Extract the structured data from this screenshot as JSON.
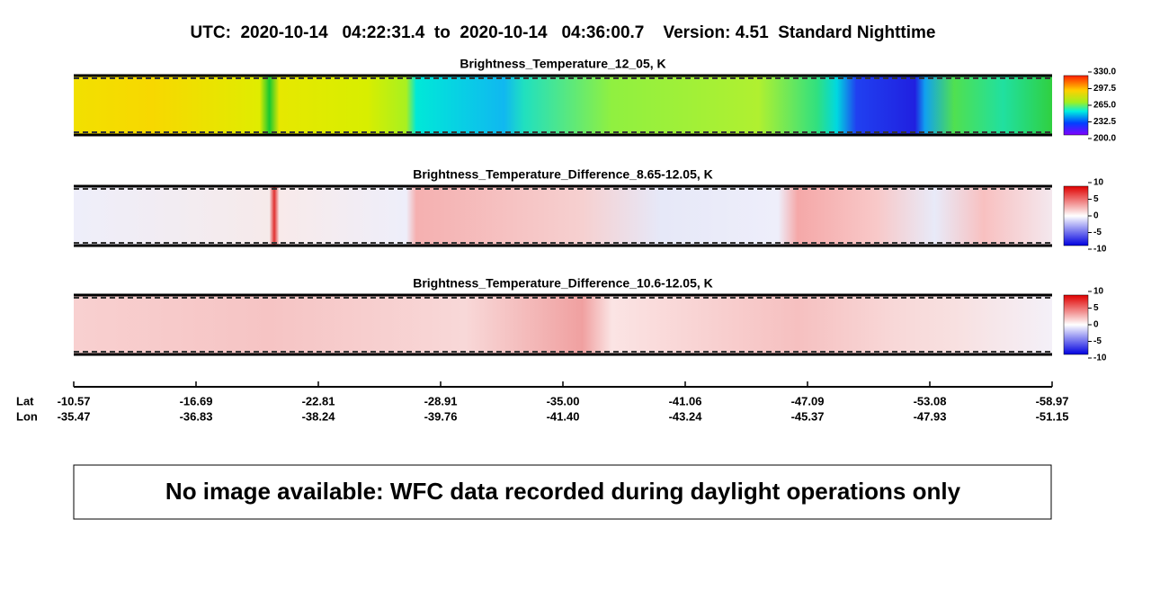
{
  "title": "UTC:  2020-10-14   04:22:31.4  to  2020-10-14   04:36:00.7    Version: 4.51  Standard Nighttime",
  "panels": [
    {
      "title": "Brightness_Temperature_12_05, K",
      "colorbar_labels": [
        "330.0",
        "297.5",
        "265.0",
        "232.5",
        "200.0"
      ]
    },
    {
      "title": "Brightness_Temperature_Difference_8.65-12.05, K",
      "colorbar_labels": [
        "10",
        "5",
        "0",
        "-5",
        "-10"
      ]
    },
    {
      "title": "Brightness_Temperature_Difference_10.6-12.05, K",
      "colorbar_labels": [
        "10",
        "5",
        "0",
        "-5",
        "-10"
      ]
    }
  ],
  "axis": {
    "row_labels": [
      "Lat",
      "Lon"
    ],
    "lat": [
      "-10.57",
      "-16.69",
      "-22.81",
      "-28.91",
      "-35.00",
      "-41.06",
      "-47.09",
      "-53.08",
      "-58.97"
    ],
    "lon": [
      "-35.47",
      "-36.83",
      "-38.24",
      "-39.76",
      "-41.40",
      "-43.24",
      "-45.37",
      "-47.93",
      "-51.15"
    ]
  },
  "message": "No image available: WFC data recorded during daylight operations only"
}
